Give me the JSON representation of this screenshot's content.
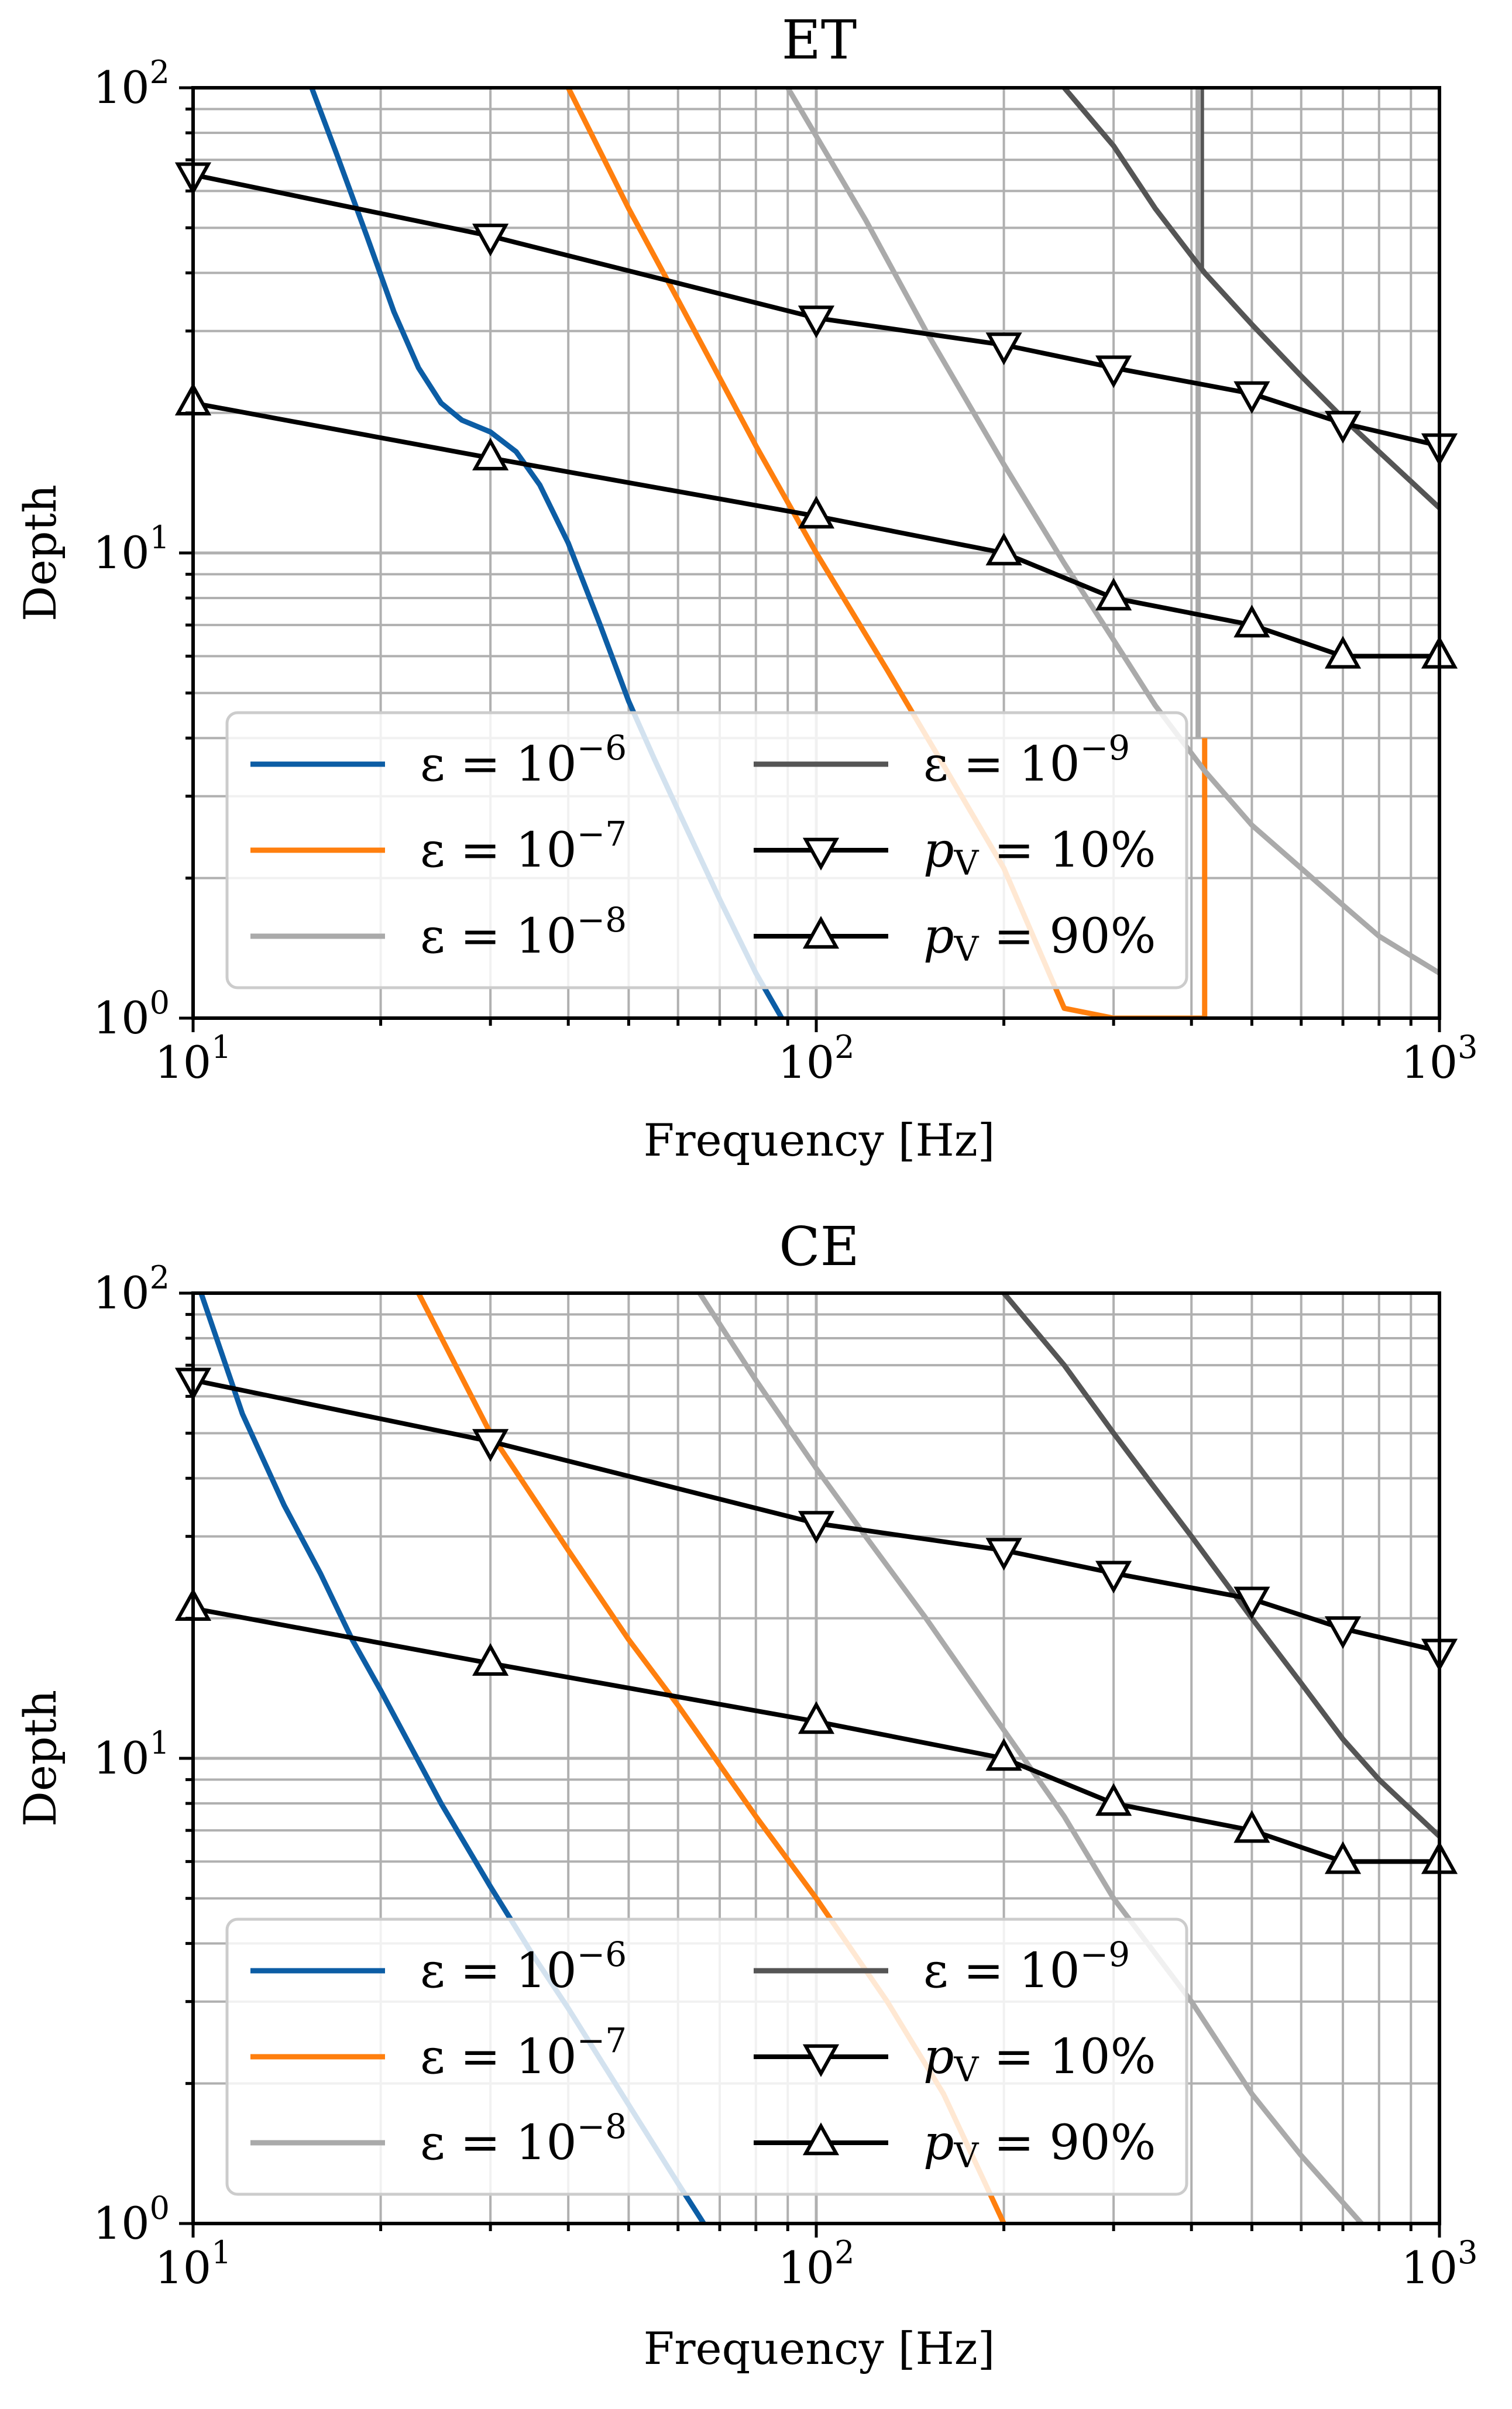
{
  "figure": {
    "legend_labels": {
      "eps_prefix": "ε = 10",
      "eps_exponents": [
        "−6",
        "−7",
        "−8",
        "−9"
      ],
      "pv_prefix": "p",
      "pv_sub": "V",
      "pv10_value": " = 10%",
      "pv90_value": " = 90%"
    }
  },
  "chart_data": [
    {
      "type": "line",
      "title": "ET",
      "xlabel": "Frequency [Hz]",
      "ylabel": "Depth",
      "xscale": "log",
      "yscale": "log",
      "xlim": [
        10,
        1000
      ],
      "ylim": [
        1,
        100
      ],
      "x_ticks": [
        {
          "base": "10",
          "exp": "1"
        },
        {
          "base": "10",
          "exp": "2"
        },
        {
          "base": "10",
          "exp": "3"
        }
      ],
      "y_ticks": [
        {
          "base": "10",
          "exp": "0"
        },
        {
          "base": "10",
          "exp": "1"
        },
        {
          "base": "10",
          "exp": "2"
        }
      ],
      "grid": true,
      "legend_position": "lower-left",
      "series": [
        {
          "name": "ε = 10^-6",
          "color": "#0c5da5",
          "x": [
            15.5,
            17,
            19,
            21,
            23,
            25,
            27,
            30,
            33,
            36,
            40,
            45,
            50,
            55,
            60,
            70,
            80,
            90
          ],
          "y": [
            100,
            72,
            48,
            33,
            25,
            21,
            19.3,
            18.2,
            16.5,
            14,
            10.5,
            7,
            4.8,
            3.6,
            2.8,
            1.8,
            1.25,
            0.95
          ]
        },
        {
          "name": "ε = 10^-7",
          "color": "#ff7f0e",
          "x": [
            40,
            50,
            60,
            80,
            100,
            130,
            160,
            200,
            250,
            300,
            350,
            380,
            398,
            400,
            420
          ],
          "y": [
            100,
            55,
            35,
            17,
            10,
            5.6,
            3.5,
            2.1,
            1.05,
            1.0,
            1.0,
            1.0,
            1.0,
            1.0,
            1.0
          ]
        },
        {
          "name": "ε = 10^-8",
          "color": "#aaaaaa",
          "x": [
            90,
            120,
            150,
            200,
            250,
            300,
            350,
            420,
            500,
            600,
            700,
            800,
            1000
          ],
          "y": [
            100,
            52,
            30,
            15.5,
            9.5,
            6.5,
            4.7,
            3.4,
            2.6,
            2.1,
            1.75,
            1.5,
            1.25
          ]
        },
        {
          "name": "ε = 10^-9",
          "color": "#555555",
          "x": [
            250,
            300,
            350,
            420,
            500,
            600,
            700,
            800,
            1000
          ],
          "y": [
            100,
            75,
            55,
            40,
            31,
            24,
            19.5,
            16.5,
            12.5
          ]
        },
        {
          "name": "pV = 10%",
          "color": "#000000",
          "marker": "triangle-down",
          "x": [
            10,
            30,
            100,
            200,
            300,
            500,
            700,
            1000
          ],
          "y": [
            65,
            48,
            32,
            28,
            25,
            22,
            19,
            17
          ]
        },
        {
          "name": "pV = 90%",
          "color": "#000000",
          "marker": "triangle-up",
          "x": [
            10,
            30,
            100,
            200,
            300,
            500,
            700,
            1000
          ],
          "y": [
            21,
            16,
            12,
            10,
            8,
            7,
            6,
            6
          ]
        }
      ],
      "vertical_lines": [
        {
          "x": 415,
          "color": "#555555",
          "y_range": [
            40,
            100
          ]
        },
        {
          "x": 410,
          "color": "#aaaaaa",
          "y_range": [
            4,
            100
          ]
        },
        {
          "x": 420,
          "color": "#ff7f0e",
          "y_range": [
            1,
            4
          ]
        }
      ]
    },
    {
      "type": "line",
      "title": "CE",
      "xlabel": "Frequency [Hz]",
      "ylabel": "Depth",
      "xscale": "log",
      "yscale": "log",
      "xlim": [
        10,
        1000
      ],
      "ylim": [
        1,
        100
      ],
      "x_ticks": [
        {
          "base": "10",
          "exp": "1"
        },
        {
          "base": "10",
          "exp": "2"
        },
        {
          "base": "10",
          "exp": "3"
        }
      ],
      "y_ticks": [
        {
          "base": "10",
          "exp": "0"
        },
        {
          "base": "10",
          "exp": "1"
        },
        {
          "base": "10",
          "exp": "2"
        }
      ],
      "grid": true,
      "legend_position": "lower-left",
      "series": [
        {
          "name": "ε = 10^-6",
          "color": "#0c5da5",
          "x": [
            10.3,
            12,
            14,
            16,
            18,
            20,
            25,
            30,
            35,
            40,
            50,
            60,
            66
          ],
          "y": [
            100,
            55,
            35,
            25,
            18,
            14,
            8,
            5.3,
            3.8,
            2.9,
            1.8,
            1.22,
            1.0
          ]
        },
        {
          "name": "ε = 10^-7",
          "color": "#ff7f0e",
          "x": [
            23,
            30,
            40,
            50,
            60,
            80,
            100,
            130,
            160,
            200
          ],
          "y": [
            100,
            50,
            28,
            18,
            13,
            7.5,
            5,
            3,
            1.9,
            1.0
          ]
        },
        {
          "name": "ε = 10^-8",
          "color": "#aaaaaa",
          "x": [
            65,
            80,
            100,
            120,
            150,
            200,
            250,
            300,
            400,
            500,
            600,
            750
          ],
          "y": [
            100,
            65,
            42,
            30,
            20,
            11.5,
            7.5,
            5,
            3,
            1.9,
            1.4,
            1.0
          ]
        },
        {
          "name": "ε = 10^-9",
          "color": "#555555",
          "x": [
            200,
            250,
            300,
            350,
            400,
            500,
            600,
            700,
            800,
            1000
          ],
          "y": [
            100,
            70,
            50,
            38,
            30,
            20,
            14.5,
            11,
            9,
            6.8
          ]
        },
        {
          "name": "pV = 10%",
          "color": "#000000",
          "marker": "triangle-down",
          "x": [
            10,
            30,
            100,
            200,
            300,
            500,
            700,
            1000
          ],
          "y": [
            65,
            48,
            32,
            28,
            25,
            22,
            19,
            17
          ]
        },
        {
          "name": "pV = 90%",
          "color": "#000000",
          "marker": "triangle-up",
          "x": [
            10,
            30,
            100,
            200,
            300,
            500,
            700,
            1000
          ],
          "y": [
            21,
            16,
            12,
            10,
            8,
            7,
            6,
            6
          ]
        }
      ],
      "vertical_lines": []
    }
  ]
}
